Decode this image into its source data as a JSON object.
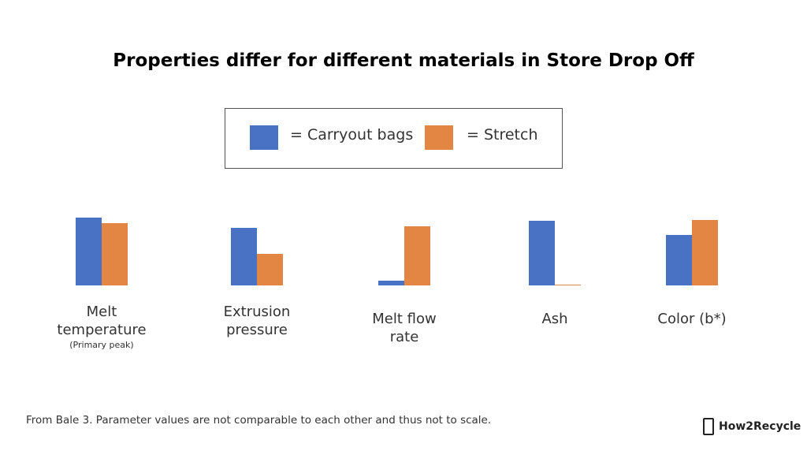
{
  "chart_data": {
    "type": "bar",
    "title": "Properties differ for different materials in Store Drop Off",
    "categories": [
      "Melt temperature",
      "Extrusion pressure",
      "Melt flow rate",
      "Ash",
      "Color (b*)"
    ],
    "category_note": "(Primary peak)",
    "series": [
      {
        "name": "= Carryout bags",
        "color": "#4a72c4",
        "values": [
          86,
          73,
          6,
          82,
          64
        ]
      },
      {
        "name": "= Stretch",
        "color": "#e38643",
        "values": [
          79,
          40,
          75,
          1,
          83
        ]
      }
    ],
    "footnote": "From Bale 3. Parameter values are not comparable to each other and thus not to scale.",
    "brand": "How2Recycle"
  }
}
